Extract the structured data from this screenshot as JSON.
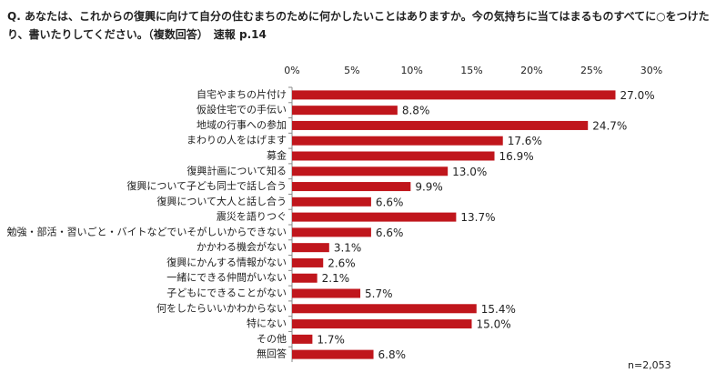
{
  "chart_data": {
    "type": "barh",
    "title": "Q. あなたは、これからの復興に向けて自分の住むまちのために何かしたいことはありますか。今の気持ちに当てはまるものすべてに○をつけたり、書いたりしてください。（複数回答）　速報 p.14",
    "categories": [
      "自宅やまちの片付け",
      "仮設住宅での手伝い",
      "地域の行事への参加",
      "まわりの人をはげます",
      "募金",
      "復興計画について知る",
      "復興について子ども同士で話し合う",
      "復興について大人と話し合う",
      "震災を語りつぐ",
      "勉強・部活・習いごと・バイトなどでいそがしいからできない",
      "かかわる機会がない",
      "復興にかんする情報がない",
      "一緒にできる仲間がいない",
      "子どもにできることがない",
      "何をしたらいいかわからない",
      "特にない",
      "その他",
      "無回答"
    ],
    "values": [
      27.0,
      8.8,
      24.7,
      17.6,
      16.9,
      13.0,
      9.9,
      6.6,
      13.7,
      6.6,
      3.1,
      2.6,
      2.1,
      5.7,
      15.4,
      15.0,
      1.7,
      6.8
    ],
    "value_labels": [
      "27.0%",
      "8.8%",
      "24.7%",
      "17.6%",
      "16.9%",
      "13.0%",
      "9.9%",
      "6.6%",
      "13.7%",
      "6.6%",
      "3.1%",
      "2.6%",
      "2.1%",
      "5.7%",
      "15.4%",
      "15.0%",
      "1.7%",
      "6.8%"
    ],
    "color": "#c0161c",
    "xlim": [
      0,
      30
    ],
    "xticks": [
      {
        "value": 0,
        "label": "0%"
      },
      {
        "value": 5,
        "label": "5%"
      },
      {
        "value": 10,
        "label": "10%"
      },
      {
        "value": 15,
        "label": "15%"
      },
      {
        "value": 20,
        "label": "20%"
      },
      {
        "value": 25,
        "label": "25%"
      },
      {
        "value": 30,
        "label": "30%"
      }
    ],
    "annotation": "n=2,053"
  }
}
